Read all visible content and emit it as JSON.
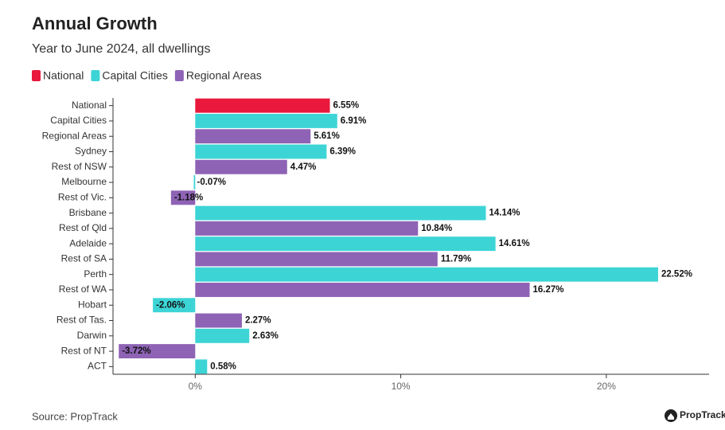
{
  "chart_data": {
    "type": "bar",
    "orientation": "horizontal",
    "title": "Annual Growth",
    "subtitle": "Year to June 2024, all dwellings",
    "source": "Source: PropTrack",
    "logo": "PropTrack",
    "categories": [
      "National",
      "Capital Cities",
      "Regional Areas",
      "Sydney",
      "Rest of NSW",
      "Melbourne",
      "Rest of Vic.",
      "Brisbane",
      "Rest of Qld",
      "Adelaide",
      "Rest of SA",
      "Perth",
      "Rest of WA",
      "Hobart",
      "Rest of Tas.",
      "Darwin",
      "Rest of NT",
      "ACT"
    ],
    "series": [
      {
        "name": "National",
        "color": "#e8193c",
        "values": [
          6.55,
          null,
          null,
          null,
          null,
          null,
          null,
          null,
          null,
          null,
          null,
          null,
          null,
          null,
          null,
          null,
          null,
          null
        ],
        "value_labels": [
          "6.55%",
          null,
          null,
          null,
          null,
          null,
          null,
          null,
          null,
          null,
          null,
          null,
          null,
          null,
          null,
          null,
          null,
          null
        ]
      },
      {
        "name": "Capital Cities",
        "color": "#3dd4d6",
        "values": [
          null,
          6.91,
          null,
          6.39,
          null,
          -0.07,
          null,
          14.14,
          null,
          14.61,
          null,
          22.52,
          null,
          -2.06,
          null,
          2.63,
          null,
          0.58
        ],
        "value_labels": [
          null,
          "6.91%",
          null,
          "6.39%",
          null,
          "-0.07%",
          null,
          "14.14%",
          null,
          "14.61%",
          null,
          "22.52%",
          null,
          "-2.06%",
          null,
          "2.63%",
          null,
          "0.58%"
        ]
      },
      {
        "name": "Regional Areas",
        "color": "#8e63b5",
        "values": [
          null,
          null,
          5.61,
          null,
          4.47,
          null,
          -1.18,
          null,
          10.84,
          null,
          11.79,
          null,
          16.27,
          null,
          2.27,
          null,
          -3.72,
          null
        ],
        "value_labels": [
          null,
          null,
          "5.61%",
          null,
          "4.47%",
          null,
          "-1.18%",
          null,
          "10.84%",
          null,
          "11.79%",
          null,
          "16.27%",
          null,
          "2.27%",
          null,
          "-3.72%",
          null
        ]
      }
    ],
    "xlim": [
      -4,
      25
    ],
    "xticks": [
      {
        "value": 0,
        "label": "0%"
      },
      {
        "value": 10,
        "label": "10%"
      },
      {
        "value": 20,
        "label": "20%"
      }
    ],
    "grid": false,
    "legend": "top"
  }
}
